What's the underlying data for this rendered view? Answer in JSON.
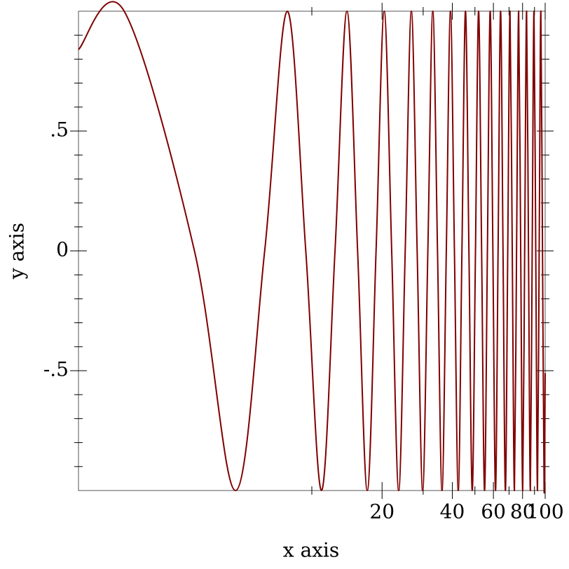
{
  "chart_data": {
    "type": "line",
    "x_label": "x axis",
    "y_label": "y axis",
    "log_x": true,
    "xlim": [
      1,
      100
    ],
    "ylim": [
      -1,
      1
    ],
    "xticks": [
      20,
      40,
      60,
      80,
      100
    ],
    "xminor_ticks": [
      10,
      30,
      50,
      70,
      90
    ],
    "yticks": [
      {
        "value": -0.5,
        "label": "-.5"
      },
      0,
      {
        "value": 0.5,
        "label": ".5"
      }
    ],
    "yminor_ticks": [
      -0.9,
      -0.8,
      -0.7,
      -0.6,
      -0.4,
      -0.3,
      -0.2,
      -0.1,
      0.1,
      0.2,
      0.3,
      0.4,
      0.6,
      0.7,
      0.8,
      0.9
    ],
    "series": [
      {
        "color": "#800000",
        "x": [
          1,
          1.57,
          3.14,
          4.71,
          6.28,
          7.85,
          9.42,
          11.0,
          12.57,
          14.14,
          15.71,
          17.28,
          18.85,
          20.42,
          21.99,
          23.56,
          25.13,
          26.7,
          28.27,
          29.85,
          31.42,
          32.99,
          34.56,
          36.13,
          37.7,
          39.27,
          40.84,
          42.41,
          43.98,
          45.55,
          47.12,
          48.69,
          50.27,
          51.84,
          53.41,
          54.98,
          56.55,
          58.12,
          59.69,
          61.26,
          62.83,
          64.4,
          65.97,
          67.54,
          69.12,
          70.69,
          72.26,
          73.83,
          75.4,
          76.97,
          78.54,
          80.11,
          81.68,
          83.25,
          84.82,
          86.39,
          87.96,
          89.54,
          91.11,
          92.68,
          94.25,
          95.82,
          97.39,
          98.96,
          100
        ],
        "values": [
          0.84,
          1,
          0,
          -1,
          0,
          1,
          0,
          -1,
          0,
          1,
          0,
          -1,
          0,
          1,
          0,
          -1,
          0,
          1,
          0,
          -1,
          0,
          1,
          0,
          -1,
          0,
          1,
          0,
          -1,
          0,
          1,
          0,
          -1,
          0,
          1,
          0,
          -1,
          0,
          1,
          0,
          -1,
          0,
          1,
          0,
          -1,
          0,
          1,
          0,
          -1,
          0,
          1,
          0,
          -1,
          0,
          1,
          0,
          -1,
          0,
          1,
          0,
          -1,
          0,
          1,
          0,
          -1,
          -0.51
        ]
      }
    ]
  }
}
